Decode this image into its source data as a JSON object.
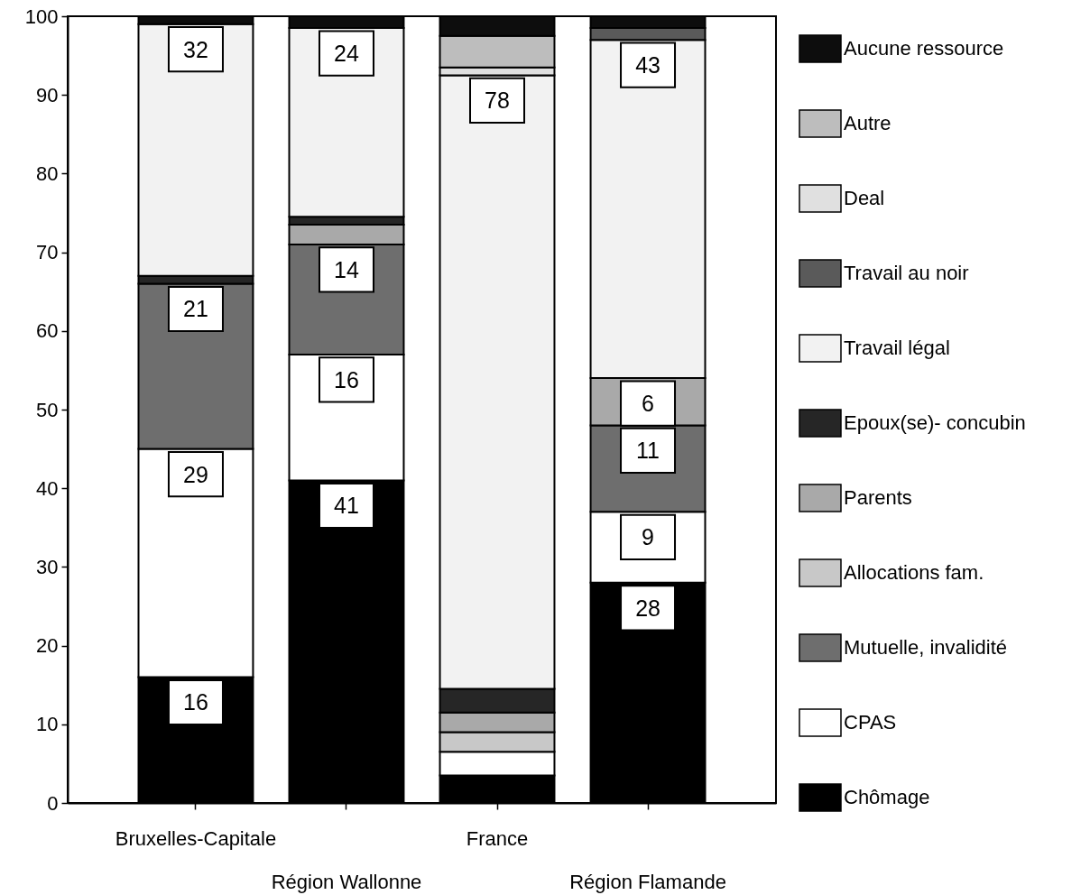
{
  "chart_data": {
    "type": "bar",
    "stacked": true,
    "categories": [
      "Bruxelles-Capitale",
      "Région Wallonne",
      "France",
      "Région Flamande"
    ],
    "series": [
      {
        "name": "Chômage",
        "color": "#000000",
        "values": [
          16,
          41,
          3.5,
          28
        ],
        "value_labels": [
          "16",
          "41",
          null,
          "28"
        ]
      },
      {
        "name": "CPAS",
        "color": "#ffffff",
        "values": [
          29,
          16,
          3,
          9
        ],
        "value_labels": [
          "29",
          "16",
          null,
          "9"
        ]
      },
      {
        "name": "Mutuelle, invalidité",
        "color": "#6e6e6e",
        "values": [
          21,
          14,
          null,
          11
        ],
        "value_labels": [
          "21",
          "14",
          null,
          "11"
        ]
      },
      {
        "name": "Allocations fam.",
        "color": "#c8c8c8",
        "values": [
          null,
          null,
          2.5,
          null
        ]
      },
      {
        "name": "Parents",
        "color": "#a9a9a9",
        "values": [
          null,
          2.5,
          2.5,
          6
        ],
        "value_labels": [
          null,
          null,
          null,
          "6"
        ]
      },
      {
        "name": "Epoux(se)- concubin",
        "color": "#262626",
        "values": [
          1,
          1,
          3,
          null
        ]
      },
      {
        "name": "Travail légal",
        "color": "#f2f2f2",
        "values": [
          32,
          24,
          78,
          43
        ],
        "value_labels": [
          "32",
          "24",
          "78",
          "43"
        ]
      },
      {
        "name": "Travail au noir",
        "color": "#5a5a5a",
        "values": [
          null,
          null,
          null,
          1.5
        ]
      },
      {
        "name": "Deal",
        "color": "#e0e0e0",
        "values": [
          null,
          null,
          1,
          null
        ]
      },
      {
        "name": "Autre",
        "color": "#bdbdbd",
        "values": [
          null,
          null,
          4,
          null
        ]
      },
      {
        "name": "Aucune ressource",
        "color": "#0d0d0d",
        "values": [
          1,
          1.5,
          2.5,
          1.5
        ]
      }
    ],
    "ylim": [
      0,
      100
    ],
    "yticks": [
      0,
      10,
      20,
      30,
      40,
      50,
      60,
      70,
      80,
      90,
      100
    ],
    "legend": "right"
  }
}
